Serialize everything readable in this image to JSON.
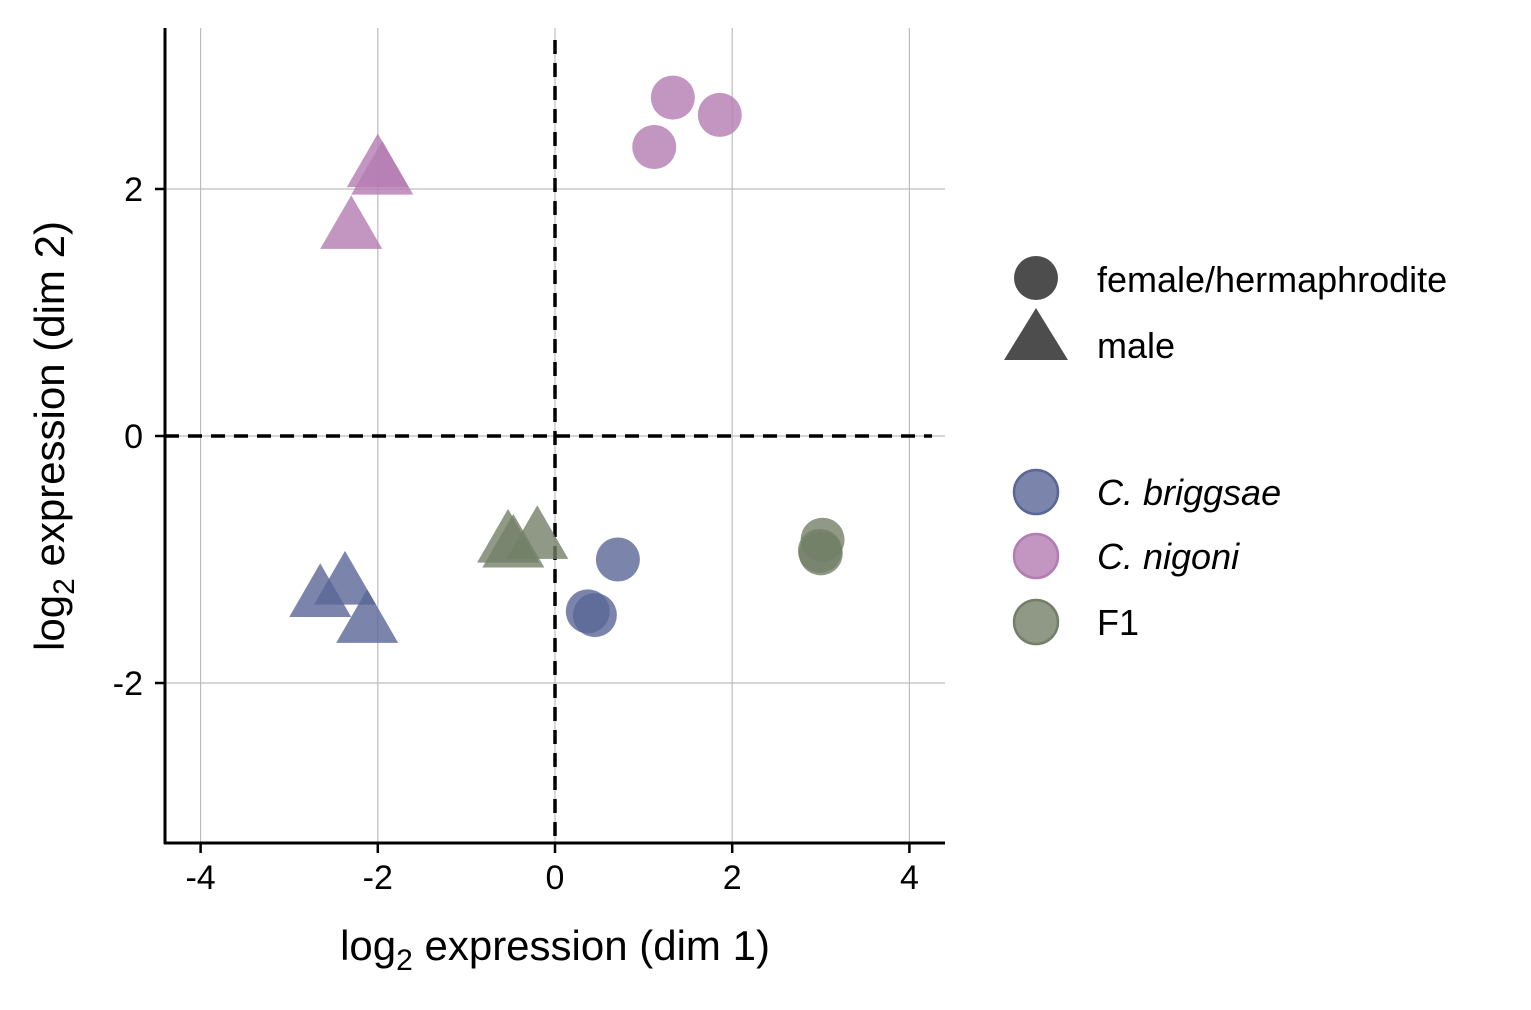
{
  "chart_data": {
    "type": "scatter",
    "xlabel": {
      "base": "log",
      "sub": "2",
      "rest": " expression (dim 1)"
    },
    "ylabel": {
      "base": "log",
      "sub": "2",
      "rest": " expression (dim 2)"
    },
    "xlim": [
      -4.4,
      4.4
    ],
    "ylim": [
      -3.3,
      3.3
    ],
    "xticks": [
      -4,
      -2,
      0,
      2,
      4
    ],
    "yticks": [
      -2,
      0,
      2
    ],
    "grid": true,
    "reference_lines": [
      {
        "axis": "x",
        "value": 0,
        "style": "dashed"
      },
      {
        "axis": "y",
        "value": 0,
        "style": "dashed"
      }
    ],
    "legend_position": "right",
    "shape_legend": [
      {
        "label": "female/hermaphrodite",
        "shape": "circle"
      },
      {
        "label": "male",
        "shape": "triangle"
      }
    ],
    "color_legend": [
      {
        "label": "C. briggsae",
        "color": "#5a6796",
        "italic": true
      },
      {
        "label": "C. nigoni",
        "color": "#b47cb1",
        "italic": true
      },
      {
        "label": "F1",
        "color": "#737f68",
        "italic": false
      }
    ],
    "legend_shape_color": "#4d4d4d",
    "points": [
      {
        "group": "C. nigoni",
        "shape": "circle",
        "x": 1.33,
        "y": 2.74
      },
      {
        "group": "C. nigoni",
        "shape": "circle",
        "x": 1.86,
        "y": 2.6
      },
      {
        "group": "C. nigoni",
        "shape": "circle",
        "x": 1.12,
        "y": 2.34
      },
      {
        "group": "C. nigoni",
        "shape": "triangle",
        "x": -2.0,
        "y": 2.18
      },
      {
        "group": "C. nigoni",
        "shape": "triangle",
        "x": -1.95,
        "y": 2.12
      },
      {
        "group": "C. nigoni",
        "shape": "triangle",
        "x": -2.3,
        "y": 1.68
      },
      {
        "group": "C. briggsae",
        "shape": "circle",
        "x": 0.71,
        "y": -1.0
      },
      {
        "group": "C. briggsae",
        "shape": "circle",
        "x": 0.37,
        "y": -1.42
      },
      {
        "group": "C. briggsae",
        "shape": "circle",
        "x": 0.45,
        "y": -1.45
      },
      {
        "group": "C. briggsae",
        "shape": "triangle",
        "x": -2.65,
        "y": -1.3
      },
      {
        "group": "C. briggsae",
        "shape": "triangle",
        "x": -2.37,
        "y": -1.2
      },
      {
        "group": "C. briggsae",
        "shape": "triangle",
        "x": -2.12,
        "y": -1.51
      },
      {
        "group": "F1",
        "shape": "circle",
        "x": 3.02,
        "y": -0.84
      },
      {
        "group": "F1",
        "shape": "circle",
        "x": 2.99,
        "y": -0.93
      },
      {
        "group": "F1",
        "shape": "circle",
        "x": 3.0,
        "y": -0.95
      },
      {
        "group": "F1",
        "shape": "triangle",
        "x": -0.53,
        "y": -0.86
      },
      {
        "group": "F1",
        "shape": "triangle",
        "x": -0.47,
        "y": -0.9
      },
      {
        "group": "F1",
        "shape": "triangle",
        "x": -0.2,
        "y": -0.83
      }
    ]
  }
}
